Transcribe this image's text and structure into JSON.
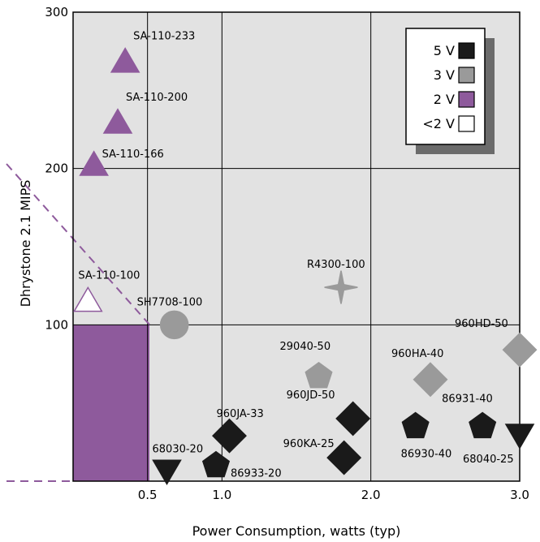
{
  "chart_data": {
    "type": "scatter",
    "title": "",
    "xlabel": "Power Consumption, watts (typ)",
    "ylabel": "Dhrystone 2.1 MIPS",
    "xlim": [
      0,
      3.0
    ],
    "ylim": [
      0,
      300
    ],
    "x_ticks": [
      "0.5",
      "1.0",
      "2.0",
      "3.0"
    ],
    "y_ticks": [
      "100",
      "200",
      "300"
    ],
    "grid": true,
    "legend_position": "top-right",
    "legend": [
      {
        "label": "5 V",
        "color": "#1a1a1a"
      },
      {
        "label": "3 V",
        "color": "#9a9a9a"
      },
      {
        "label": "2 V",
        "color": "#8e5a9c"
      },
      {
        "label": "<2 V",
        "color": "#ffffff"
      }
    ],
    "highlight_region": {
      "x": [
        0,
        0.5
      ],
      "y": [
        0,
        100
      ],
      "color": "#8e5a9c"
    },
    "points": [
      {
        "name": "SA-110-233",
        "x": 0.35,
        "y": 268,
        "voltage": "2 V",
        "shape": "triangle"
      },
      {
        "name": "SA-110-200",
        "x": 0.3,
        "y": 229,
        "voltage": "2 V",
        "shape": "triangle"
      },
      {
        "name": "SA-110-166",
        "x": 0.14,
        "y": 202,
        "voltage": "2 V",
        "shape": "triangle"
      },
      {
        "name": "SA-110-100",
        "x": 0.1,
        "y": 115,
        "voltage": "<2 V",
        "shape": "triangle"
      },
      {
        "name": "SH7708-100",
        "x": 0.68,
        "y": 100,
        "voltage": "3 V",
        "shape": "circle"
      },
      {
        "name": "R4300-100",
        "x": 1.8,
        "y": 124,
        "voltage": "3 V",
        "shape": "star"
      },
      {
        "name": "29040-50",
        "x": 1.65,
        "y": 67,
        "voltage": "3 V",
        "shape": "pentagon"
      },
      {
        "name": "960HA-40",
        "x": 2.4,
        "y": 65,
        "voltage": "3 V",
        "shape": "diamond"
      },
      {
        "name": "960HD-50",
        "x": 3.0,
        "y": 84,
        "voltage": "3 V",
        "shape": "diamond"
      },
      {
        "name": "960JD-50",
        "x": 1.88,
        "y": 40,
        "voltage": "5 V",
        "shape": "diamond"
      },
      {
        "name": "960JA-33",
        "x": 1.05,
        "y": 29,
        "voltage": "5 V",
        "shape": "diamond"
      },
      {
        "name": "960KA-25",
        "x": 1.82,
        "y": 15,
        "voltage": "5 V",
        "shape": "diamond"
      },
      {
        "name": "86930-40",
        "x": 2.3,
        "y": 35,
        "voltage": "5 V",
        "shape": "pentagon"
      },
      {
        "name": "86931-40",
        "x": 2.75,
        "y": 35,
        "voltage": "5 V",
        "shape": "pentagon"
      },
      {
        "name": "86933-20",
        "x": 0.96,
        "y": 10,
        "voltage": "5 V",
        "shape": "pentagon"
      },
      {
        "name": "68030-20",
        "x": 0.63,
        "y": 7,
        "voltage": "5 V",
        "shape": "triangle-down"
      },
      {
        "name": "68040-25",
        "x": 3.0,
        "y": 30,
        "voltage": "5 V",
        "shape": "triangle-down"
      }
    ]
  }
}
